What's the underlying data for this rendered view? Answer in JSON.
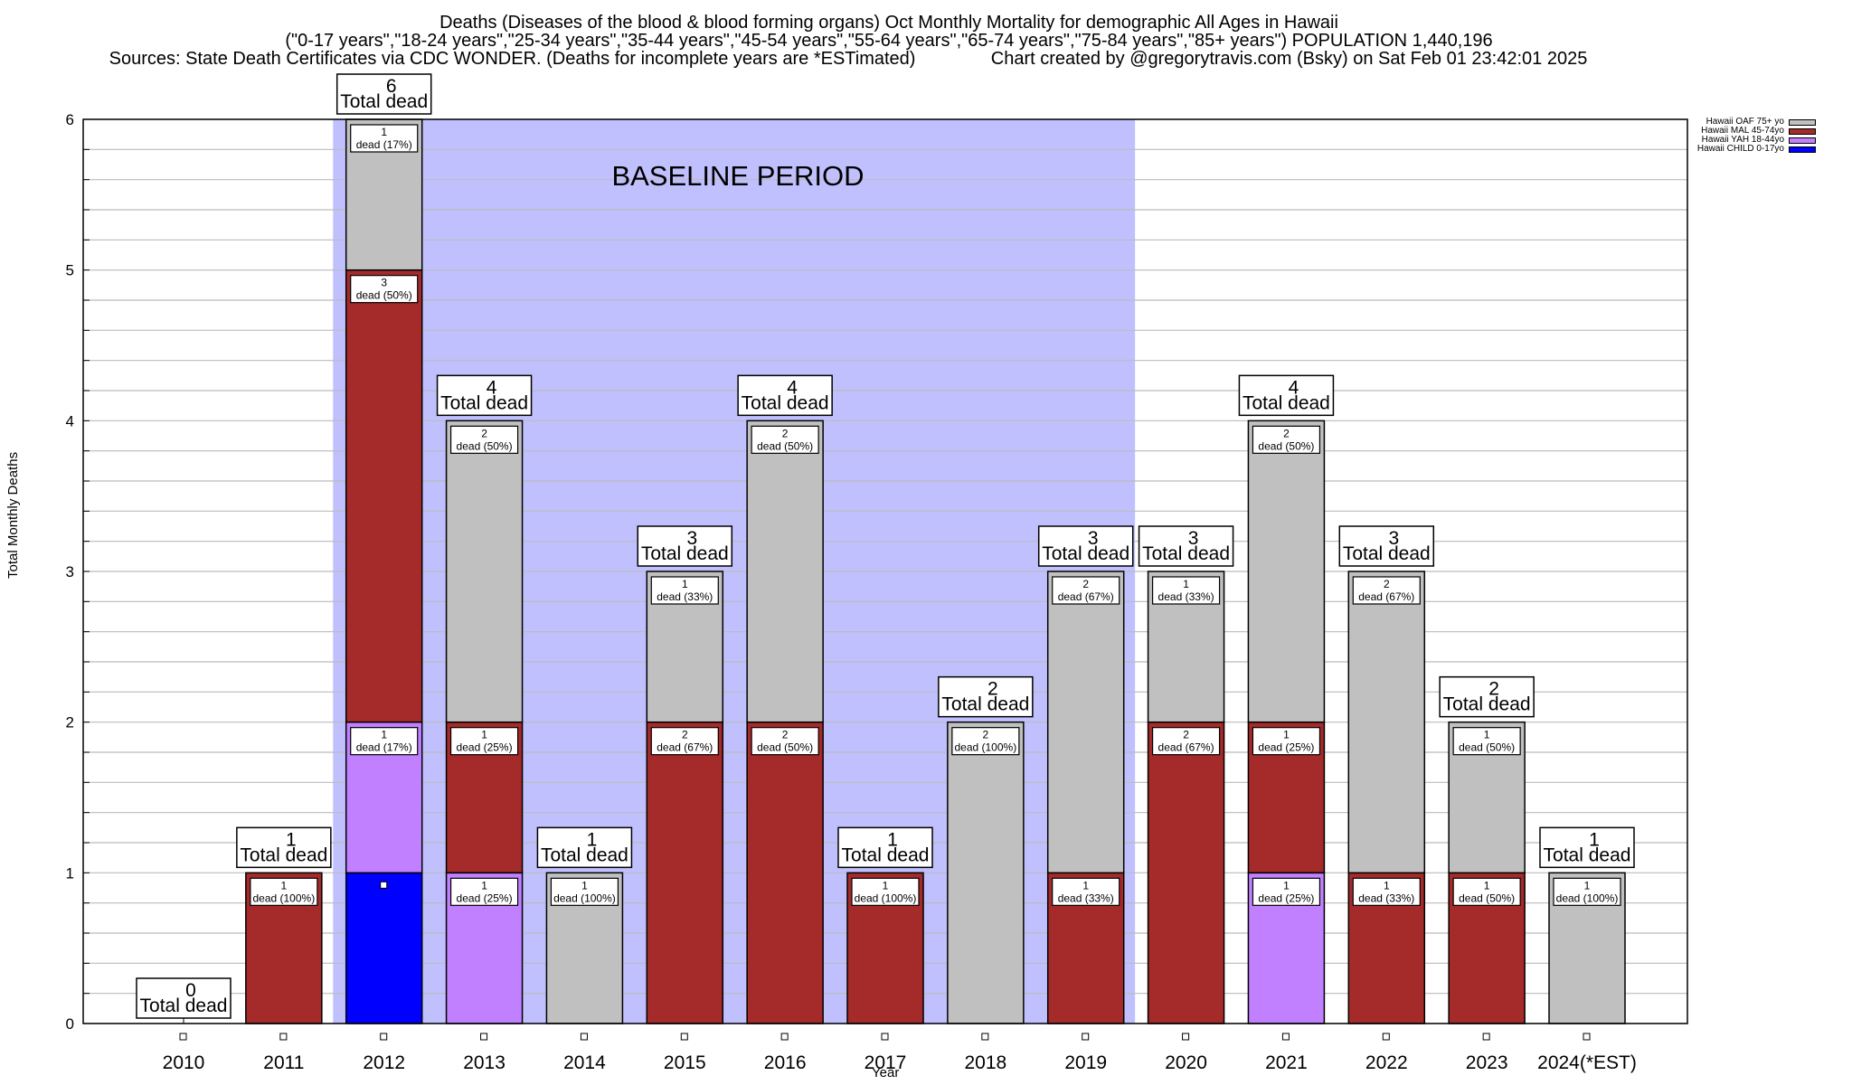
{
  "header": {
    "title_line1": "Deaths (Diseases of the blood & blood forming organs) Oct Monthly Mortality for demographic All Ages in Hawaii",
    "title_line2": "(\"0-17 years\",\"18-24 years\",\"25-34 years\",\"35-44 years\",\"45-54 years\",\"55-64 years\",\"65-74 years\",\"75-84 years\",\"85+ years\") POPULATION 1,440,196",
    "title_line3": "Sources: State Death Certificates via CDC WONDER. (Deaths for incomplete years are *ESTimated)               Chart created by @gregorytravis.com (Bsky) on Sat Feb 01 23:42:01 2025"
  },
  "chart_data": {
    "type": "bar",
    "stacked": true,
    "title": "Deaths (Diseases of the blood & blood forming organs) Oct Monthly Mortality for demographic All Ages in Hawaii",
    "xlabel": "Year",
    "ylabel": "Total Monthly Deaths",
    "ylim": [
      0,
      6
    ],
    "yticks": [
      0,
      1,
      2,
      3,
      4,
      5,
      6
    ],
    "minor_grid_step": 0.2,
    "grid": true,
    "legend_position": "top-right",
    "categories": [
      "2010",
      "2011",
      "2012",
      "2013",
      "2014",
      "2015",
      "2016",
      "2017",
      "2018",
      "2019",
      "2020",
      "2021",
      "2022",
      "2023",
      "2024(*EST)"
    ],
    "series": [
      {
        "name": "Hawaii CHILD 0-17yo",
        "color": "#0000ff",
        "values": [
          0,
          0,
          1,
          0,
          0,
          0,
          0,
          0,
          0,
          0,
          0,
          0,
          0,
          0,
          0
        ]
      },
      {
        "name": "Hawaii YAH 18-44yo",
        "color": "#c080ff",
        "values": [
          0,
          0,
          1,
          1,
          0,
          0,
          0,
          0,
          0,
          0,
          0,
          1,
          0,
          0,
          0
        ]
      },
      {
        "name": "Hawaii MAL 45-74yo",
        "color": "#a52a2a",
        "values": [
          0,
          1,
          3,
          1,
          0,
          2,
          2,
          1,
          0,
          1,
          2,
          1,
          1,
          1,
          0
        ]
      },
      {
        "name": "Hawaii OAF 75+ yo",
        "color": "#c0c0c0",
        "values": [
          0,
          0,
          1,
          2,
          1,
          1,
          2,
          0,
          2,
          2,
          1,
          2,
          2,
          1,
          1
        ]
      }
    ],
    "totals": [
      0,
      1,
      6,
      4,
      1,
      3,
      4,
      1,
      2,
      3,
      3,
      4,
      3,
      2,
      1
    ],
    "total_label_suffix": "Total dead",
    "segment_label_suffix": "dead",
    "segment_percent": [
      [
        null,
        null,
        null,
        null
      ],
      [
        null,
        null,
        "100%",
        null
      ],
      [
        null,
        "17%",
        "50%",
        "17%"
      ],
      [
        null,
        "25%",
        "25%",
        "50%"
      ],
      [
        null,
        null,
        null,
        "100%"
      ],
      [
        null,
        null,
        "67%",
        "33%"
      ],
      [
        null,
        null,
        "50%",
        "50%"
      ],
      [
        null,
        null,
        "100%",
        null
      ],
      [
        null,
        null,
        null,
        "100%"
      ],
      [
        null,
        null,
        "33%",
        "67%"
      ],
      [
        null,
        null,
        "67%",
        "33%"
      ],
      [
        null,
        "25%",
        "25%",
        "50%"
      ],
      [
        null,
        null,
        "33%",
        "67%"
      ],
      [
        null,
        null,
        "50%",
        "50%"
      ],
      [
        null,
        null,
        null,
        "100%"
      ]
    ],
    "annotations": [
      {
        "text": "BASELINE PERIOD",
        "span": [
          "2012",
          "2019"
        ],
        "shade_color": "#c0c0ff"
      }
    ]
  },
  "legend": {
    "items": [
      {
        "label": "Hawaii OAF 75+ yo",
        "color": "#c0c0c0"
      },
      {
        "label": "Hawaii MAL 45-74yo",
        "color": "#a52a2a"
      },
      {
        "label": "Hawaii YAH 18-44yo",
        "color": "#c080ff"
      },
      {
        "label": "Hawaii CHILD 0-17yo",
        "color": "#0000ff"
      }
    ]
  }
}
